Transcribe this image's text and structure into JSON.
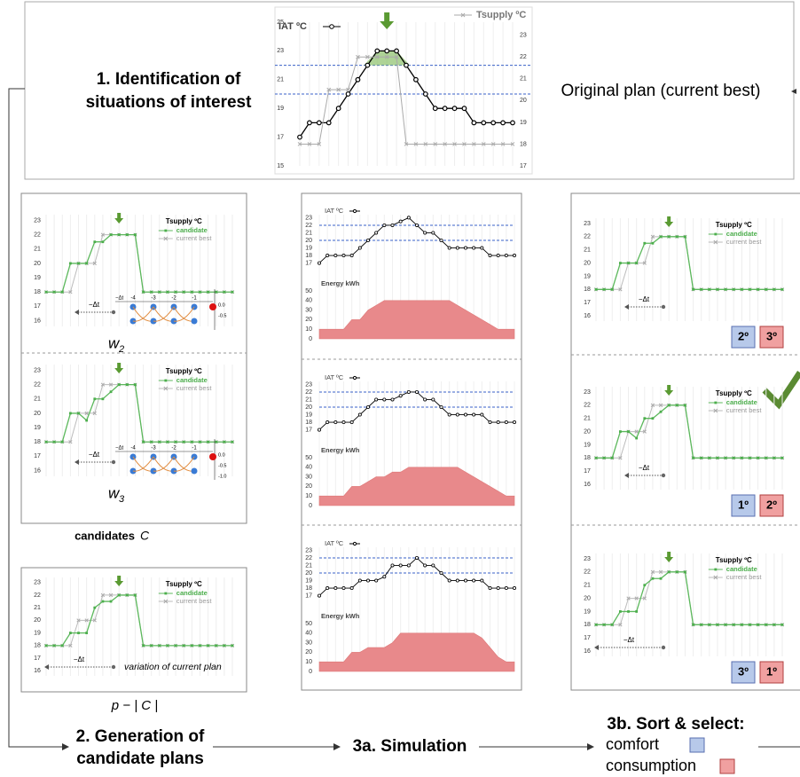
{
  "step1": {
    "title": [
      "1. Identification of",
      "situations of interest"
    ],
    "note": "Original plan (current best)"
  },
  "top_chart": {
    "type": "line",
    "ylim": [
      15,
      25
    ],
    "yticks": [
      15,
      17,
      19,
      21,
      23,
      25
    ],
    "y2lim": [
      17,
      23.6
    ],
    "y2ticks": [
      17,
      18,
      19,
      20,
      21,
      22,
      23
    ],
    "comfort_bounds": [
      20,
      22
    ],
    "series": [
      {
        "name": "IAT ºC",
        "color": "#000000",
        "values": [
          17,
          18,
          18,
          18,
          19,
          20,
          21,
          22,
          23,
          23,
          23,
          22,
          21,
          20,
          19,
          19,
          19,
          19,
          18,
          18,
          18,
          18,
          18
        ]
      },
      {
        "name": "Tsupply ºC",
        "color": "#aaaaaa",
        "axis": "y2",
        "values": [
          18,
          18,
          18,
          20.5,
          20.5,
          20.5,
          22,
          22,
          22,
          22,
          22,
          18,
          18,
          18,
          18,
          18,
          18,
          18,
          18,
          18,
          18,
          18,
          18
        ]
      }
    ]
  },
  "candidates": {
    "type": "line",
    "legend_title": "Tsupply ºC",
    "candidate_label": "candidate",
    "current_label": "current best",
    "shift_label": "−Δt",
    "ylim": [
      15.6,
      23.4
    ],
    "yticks": [
      16,
      17,
      18,
      19,
      20,
      21,
      22,
      23
    ],
    "current_best": [
      18,
      18,
      18,
      18,
      20,
      20,
      20,
      22,
      22,
      22,
      22,
      22,
      18,
      18,
      18,
      18,
      18,
      18,
      18,
      18,
      18,
      18,
      18,
      18
    ],
    "plans": [
      {
        "values": [
          18,
          18,
          18,
          20,
          20,
          20,
          21.5,
          21.5,
          22,
          22,
          22,
          22,
          18,
          18,
          18,
          18,
          18,
          18,
          18,
          18,
          18,
          18,
          18,
          18
        ],
        "weight": {
          "symbol": "w",
          "index": "2"
        },
        "inset_y": [
          "0.0",
          "-0.5"
        ]
      },
      {
        "values": [
          18,
          18,
          18,
          20,
          20,
          19.5,
          21,
          21,
          21.5,
          22,
          22,
          22,
          18,
          18,
          18,
          18,
          18,
          18,
          18,
          18,
          18,
          18,
          18,
          18
        ],
        "weight": {
          "symbol": "w",
          "index": "3"
        },
        "inset_y": [
          "0.0",
          "-0.5",
          "-1.0"
        ]
      },
      {
        "values": [
          18,
          18,
          18,
          19,
          19,
          19,
          21,
          21.5,
          21.5,
          22,
          22,
          22,
          18,
          18,
          18,
          18,
          18,
          18,
          18,
          18,
          18,
          18,
          18,
          18
        ],
        "note": "variation of current plan"
      }
    ],
    "inset_x": [
      "-4",
      "-3",
      "-2",
      "-1"
    ],
    "caption": {
      "text": "candidates",
      "symbol": "C"
    },
    "formula": "p − | C |"
  },
  "simulation": {
    "type": "line",
    "iat_label": "IAT ºC",
    "energy_label": "Energy kWh",
    "ylim": [
      16.6,
      23.4
    ],
    "yticks": [
      17,
      18,
      19,
      20,
      21,
      22,
      23
    ],
    "energy_ylim": [
      0,
      50
    ],
    "energy_yticks": [
      0,
      10,
      20,
      30,
      40,
      50
    ],
    "runs": [
      {
        "iat": [
          17,
          18,
          18,
          18,
          18,
          19,
          20,
          21,
          22,
          22,
          22.5,
          23,
          22,
          21,
          21,
          20,
          19,
          19,
          19,
          19,
          19,
          18,
          18,
          18,
          18
        ],
        "energy": [
          10,
          10,
          10,
          10,
          20,
          20,
          30,
          35,
          40,
          40,
          40,
          40,
          40,
          40,
          40,
          40,
          40,
          35,
          30,
          25,
          20,
          15,
          10,
          10,
          10
        ]
      },
      {
        "iat": [
          17,
          18,
          18,
          18,
          18,
          19,
          20,
          21,
          21,
          21,
          21.5,
          22,
          22,
          21,
          21,
          20,
          19,
          19,
          19,
          19,
          19,
          18,
          18,
          18,
          18
        ],
        "energy": [
          10,
          10,
          10,
          10,
          20,
          20,
          25,
          30,
          30,
          35,
          35,
          40,
          40,
          40,
          40,
          40,
          40,
          40,
          35,
          30,
          25,
          20,
          15,
          10,
          10
        ]
      },
      {
        "iat": [
          17,
          18,
          18,
          18,
          18,
          19,
          19,
          19,
          19.5,
          21,
          21,
          21,
          22,
          21,
          21,
          20,
          19,
          19,
          19,
          19,
          19,
          18,
          18,
          18,
          18
        ],
        "energy": [
          10,
          10,
          10,
          10,
          20,
          20,
          25,
          25,
          25,
          30,
          40,
          40,
          40,
          40,
          40,
          40,
          40,
          40,
          40,
          40,
          35,
          25,
          15,
          10,
          10
        ]
      }
    ]
  },
  "ranks": [
    [
      "2º",
      "3º"
    ],
    [
      "1º",
      "2º"
    ],
    [
      "3º",
      "1º"
    ]
  ],
  "steps": {
    "generation": [
      "2. Generation of",
      "candidate plans"
    ],
    "simulation": "3a. Simulation",
    "sort": "3b. Sort & select:",
    "comfort": "comfort",
    "consumption": "consumption"
  }
}
